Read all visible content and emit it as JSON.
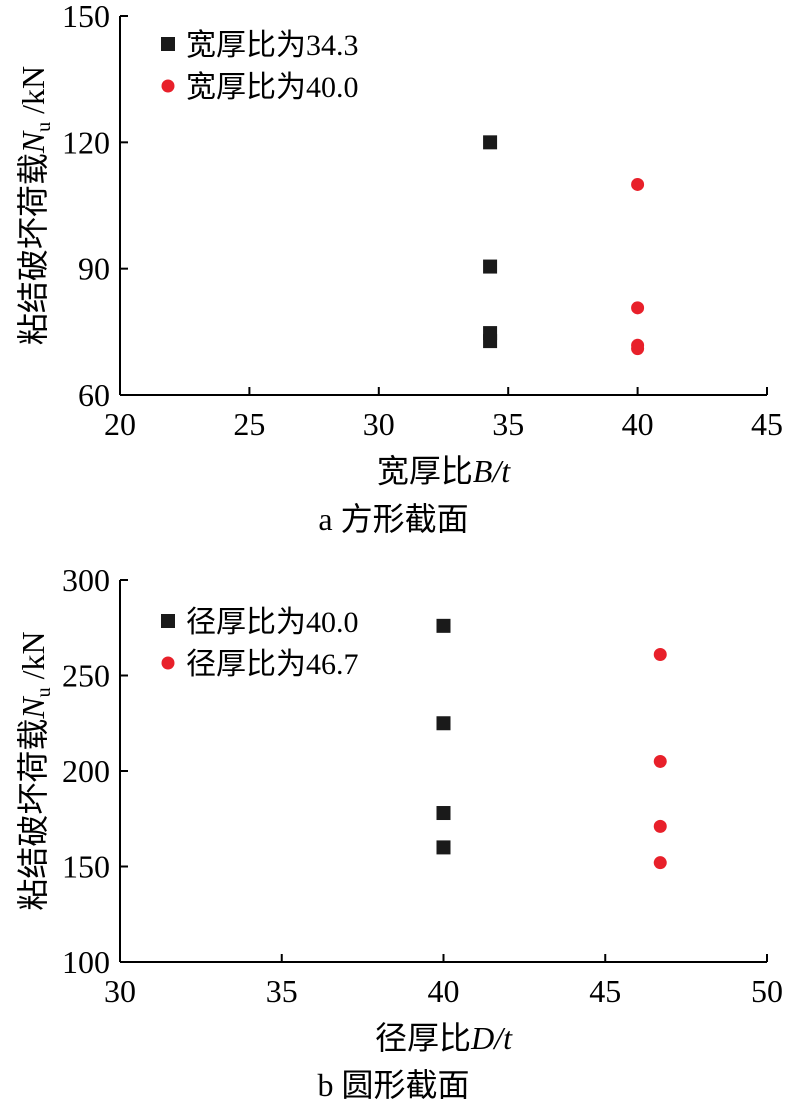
{
  "chart_data": [
    {
      "type": "scatter",
      "caption": "a 方形截面",
      "xlabel": {
        "text": "宽厚比",
        "var": "B",
        "rest": "/t"
      },
      "ylabel": {
        "text": "粘结破坏荷载",
        "var": "N",
        "sub": "u",
        "unit": " /kN"
      },
      "xlim": [
        20,
        45
      ],
      "ylim": [
        60,
        150
      ],
      "xticks": [
        20,
        25,
        30,
        35,
        40,
        45
      ],
      "yticks": [
        60,
        90,
        120,
        150
      ],
      "grid": false,
      "legend_position": "top-left",
      "series": [
        {
          "name": "宽厚比为34.3",
          "marker": "square",
          "color": "#1a1a1a",
          "points": [
            [
              34.3,
              120
            ],
            [
              34.3,
              90.5
            ],
            [
              34.3,
              74.7
            ],
            [
              34.3,
              72.8
            ]
          ]
        },
        {
          "name": "宽厚比为40.0",
          "marker": "circle",
          "color": "#e8202a",
          "points": [
            [
              40.0,
              110
            ],
            [
              40.0,
              80.7
            ],
            [
              40.0,
              71.8
            ],
            [
              40.0,
              71.0
            ]
          ]
        }
      ]
    },
    {
      "type": "scatter",
      "caption": "b 圆形截面",
      "xlabel": {
        "text": "径厚比",
        "var": "D",
        "rest": "/t"
      },
      "ylabel": {
        "text": "粘结破坏荷载",
        "var": "N",
        "sub": "u",
        "unit": " /kN"
      },
      "xlim": [
        30,
        50
      ],
      "ylim": [
        100,
        300
      ],
      "xticks": [
        30,
        35,
        40,
        45,
        50
      ],
      "yticks": [
        100,
        150,
        200,
        250,
        300
      ],
      "grid": false,
      "legend_position": "top-left",
      "series": [
        {
          "name": "径厚比为40.0",
          "marker": "square",
          "color": "#1a1a1a",
          "points": [
            [
              40.0,
              276
            ],
            [
              40.0,
              225
            ],
            [
              40.0,
              178
            ],
            [
              40.0,
              160
            ]
          ]
        },
        {
          "name": "径厚比为46.7",
          "marker": "circle",
          "color": "#e8202a",
          "points": [
            [
              46.7,
              261
            ],
            [
              46.7,
              205
            ],
            [
              46.7,
              171
            ],
            [
              46.7,
              152
            ]
          ]
        }
      ]
    }
  ]
}
